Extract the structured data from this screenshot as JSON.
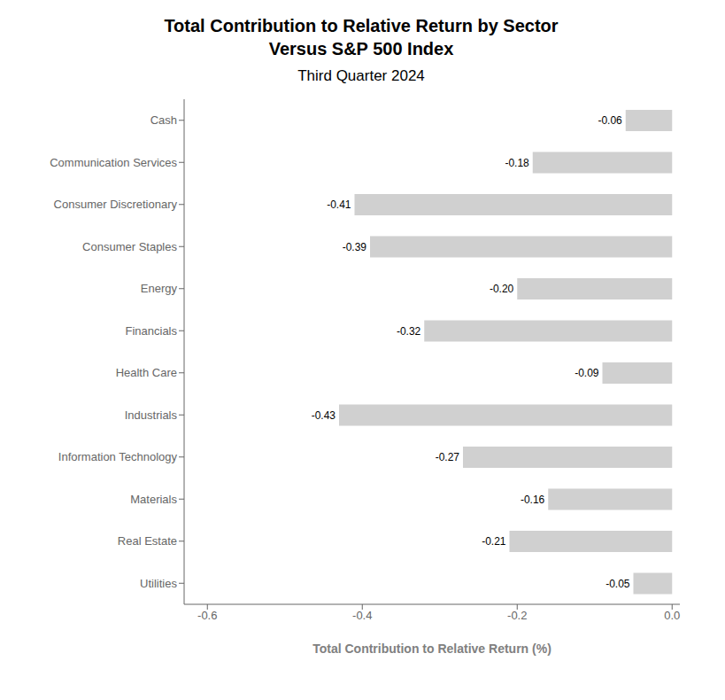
{
  "chart_data": {
    "type": "bar",
    "orientation": "horizontal",
    "title": "Total Contribution to Relative Return by Sector\nVersus S&P 500 Index",
    "subtitle": "Third Quarter 2024",
    "x_label": "Total Contribution to Relative Return (%)",
    "categories": [
      "Cash",
      "Communication Services",
      "Consumer Discretionary",
      "Consumer Staples",
      "Energy",
      "Financials",
      "Health Care",
      "Industrials",
      "Information Technology",
      "Materials",
      "Real Estate",
      "Utilities"
    ],
    "values": [
      -0.06,
      -0.18,
      -0.41,
      -0.39,
      -0.2,
      -0.32,
      -0.09,
      -0.43,
      -0.27,
      -0.16,
      -0.21,
      -0.05
    ],
    "value_labels": [
      "-0.06",
      "-0.18",
      "-0.41",
      "-0.39",
      "-0.20",
      "-0.32",
      "-0.09",
      "-0.43",
      "-0.27",
      "-0.16",
      "-0.21",
      "-0.05"
    ],
    "data_labels": true,
    "color": "#D0D0D0",
    "xlim": [
      -0.63,
      0.01
    ],
    "xticks": [
      -0.6,
      -0.4,
      -0.2,
      {
        "value": 0,
        "label": "0.0"
      }
    ],
    "grid": false
  }
}
